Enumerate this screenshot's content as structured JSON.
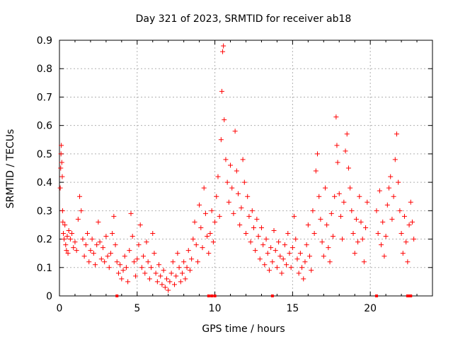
{
  "chart_data": {
    "type": "scatter",
    "title": "Day 321 of 2023, SRMTID for receiver ab18",
    "xlabel": "GPS time / hours",
    "ylabel": "SRMTID / TECUs",
    "xlim": [
      0,
      24
    ],
    "ylim": [
      0,
      0.9
    ],
    "xticks": [
      0,
      5,
      10,
      15,
      20
    ],
    "yticks": [
      0,
      0.1,
      0.2,
      0.3,
      0.4,
      0.5,
      0.6,
      0.7,
      0.8,
      0.9
    ],
    "grid": true,
    "marker": "+",
    "color": "#ff0000",
    "series": [
      {
        "name": "SRMTID",
        "points": [
          [
            0.05,
            0.38
          ],
          [
            0.08,
            0.45
          ],
          [
            0.1,
            0.5
          ],
          [
            0.12,
            0.53
          ],
          [
            0.15,
            0.47
          ],
          [
            0.18,
            0.42
          ],
          [
            0.2,
            0.3
          ],
          [
            0.22,
            0.26
          ],
          [
            0.25,
            0.22
          ],
          [
            0.3,
            0.2
          ],
          [
            0.35,
            0.25
          ],
          [
            0.4,
            0.18
          ],
          [
            0.45,
            0.16
          ],
          [
            0.5,
            0.21
          ],
          [
            0.55,
            0.15
          ],
          [
            0.6,
            0.23
          ],
          [
            0.7,
            0.2
          ],
          [
            0.8,
            0.22
          ],
          [
            0.9,
            0.17
          ],
          [
            1.0,
            0.19
          ],
          [
            1.1,
            0.16
          ],
          [
            1.2,
            0.27
          ],
          [
            1.3,
            0.35
          ],
          [
            1.4,
            0.3
          ],
          [
            1.5,
            0.2
          ],
          [
            1.6,
            0.14
          ],
          [
            1.7,
            0.18
          ],
          [
            1.8,
            0.22
          ],
          [
            1.9,
            0.12
          ],
          [
            2.0,
            0.16
          ],
          [
            2.1,
            0.2
          ],
          [
            2.2,
            0.15
          ],
          [
            2.3,
            0.11
          ],
          [
            2.4,
            0.18
          ],
          [
            2.5,
            0.26
          ],
          [
            2.6,
            0.19
          ],
          [
            2.7,
            0.13
          ],
          [
            2.8,
            0.17
          ],
          [
            2.9,
            0.12
          ],
          [
            3.0,
            0.21
          ],
          [
            3.1,
            0.14
          ],
          [
            3.2,
            0.1
          ],
          [
            3.3,
            0.15
          ],
          [
            3.4,
            0.22
          ],
          [
            3.5,
            0.28
          ],
          [
            3.6,
            0.18
          ],
          [
            3.7,
            0.12
          ],
          [
            3.8,
            0.08
          ],
          [
            3.9,
            0.11
          ],
          [
            4.0,
            0.06
          ],
          [
            4.1,
            0.09
          ],
          [
            4.2,
            0.14
          ],
          [
            4.3,
            0.1
          ],
          [
            4.4,
            0.05
          ],
          [
            4.5,
            0.16
          ],
          [
            4.6,
            0.29
          ],
          [
            4.7,
            0.21
          ],
          [
            4.8,
            0.12
          ],
          [
            4.9,
            0.07
          ],
          [
            5.0,
            0.13
          ],
          [
            5.1,
            0.18
          ],
          [
            5.2,
            0.25
          ],
          [
            5.3,
            0.1
          ],
          [
            5.4,
            0.14
          ],
          [
            5.5,
            0.08
          ],
          [
            5.6,
            0.19
          ],
          [
            5.7,
            0.12
          ],
          [
            5.8,
            0.06
          ],
          [
            5.9,
            0.1
          ],
          [
            6.0,
            0.22
          ],
          [
            6.1,
            0.15
          ],
          [
            6.2,
            0.08
          ],
          [
            6.3,
            0.05
          ],
          [
            6.4,
            0.11
          ],
          [
            6.5,
            0.07
          ],
          [
            6.6,
            0.04
          ],
          [
            6.7,
            0.09
          ],
          [
            6.8,
            0.03
          ],
          [
            6.9,
            0.06
          ],
          [
            7.0,
            0.02
          ],
          [
            7.1,
            0.05
          ],
          [
            7.2,
            0.08
          ],
          [
            7.3,
            0.12
          ],
          [
            7.4,
            0.04
          ],
          [
            7.5,
            0.07
          ],
          [
            7.6,
            0.15
          ],
          [
            7.7,
            0.1
          ],
          [
            7.8,
            0.05
          ],
          [
            7.9,
            0.08
          ],
          [
            8.0,
            0.12
          ],
          [
            8.1,
            0.06
          ],
          [
            8.2,
            0.1
          ],
          [
            8.3,
            0.16
          ],
          [
            8.4,
            0.09
          ],
          [
            8.5,
            0.13
          ],
          [
            8.6,
            0.2
          ],
          [
            8.7,
            0.26
          ],
          [
            8.8,
            0.18
          ],
          [
            8.9,
            0.12
          ],
          [
            9.0,
            0.32
          ],
          [
            9.1,
            0.24
          ],
          [
            9.2,
            0.17
          ],
          [
            9.3,
            0.38
          ],
          [
            9.4,
            0.29
          ],
          [
            9.5,
            0.21
          ],
          [
            9.6,
            0.15
          ],
          [
            9.7,
            0.22
          ],
          [
            9.8,
            0.3
          ],
          [
            9.9,
            0.19
          ],
          [
            10.0,
            0.26
          ],
          [
            10.1,
            0.35
          ],
          [
            10.2,
            0.42
          ],
          [
            10.3,
            0.28
          ],
          [
            10.4,
            0.55
          ],
          [
            10.45,
            0.72
          ],
          [
            10.5,
            0.86
          ],
          [
            10.55,
            0.88
          ],
          [
            10.6,
            0.62
          ],
          [
            10.7,
            0.48
          ],
          [
            10.8,
            0.4
          ],
          [
            10.9,
            0.33
          ],
          [
            11.0,
            0.46
          ],
          [
            11.1,
            0.38
          ],
          [
            11.2,
            0.29
          ],
          [
            11.3,
            0.58
          ],
          [
            11.4,
            0.44
          ],
          [
            11.5,
            0.36
          ],
          [
            11.6,
            0.25
          ],
          [
            11.7,
            0.31
          ],
          [
            11.8,
            0.48
          ],
          [
            11.9,
            0.4
          ],
          [
            12.0,
            0.22
          ],
          [
            12.1,
            0.35
          ],
          [
            12.2,
            0.28
          ],
          [
            12.3,
            0.19
          ],
          [
            12.4,
            0.3
          ],
          [
            12.5,
            0.24
          ],
          [
            12.6,
            0.16
          ],
          [
            12.7,
            0.27
          ],
          [
            12.8,
            0.21
          ],
          [
            12.9,
            0.13
          ],
          [
            13.0,
            0.24
          ],
          [
            13.1,
            0.18
          ],
          [
            13.2,
            0.11
          ],
          [
            13.3,
            0.2
          ],
          [
            13.4,
            0.15
          ],
          [
            13.5,
            0.09
          ],
          [
            13.6,
            0.17
          ],
          [
            13.7,
            0.12
          ],
          [
            13.8,
            0.23
          ],
          [
            13.9,
            0.16
          ],
          [
            14.0,
            0.1
          ],
          [
            14.1,
            0.19
          ],
          [
            14.2,
            0.14
          ],
          [
            14.3,
            0.08
          ],
          [
            14.4,
            0.13
          ],
          [
            14.5,
            0.18
          ],
          [
            14.6,
            0.11
          ],
          [
            14.7,
            0.22
          ],
          [
            14.8,
            0.15
          ],
          [
            14.9,
            0.1
          ],
          [
            15.0,
            0.17
          ],
          [
            15.1,
            0.28
          ],
          [
            15.2,
            0.2
          ],
          [
            15.3,
            0.13
          ],
          [
            15.4,
            0.08
          ],
          [
            15.5,
            0.15
          ],
          [
            15.6,
            0.1
          ],
          [
            15.7,
            0.06
          ],
          [
            15.8,
            0.12
          ],
          [
            15.9,
            0.18
          ],
          [
            16.0,
            0.25
          ],
          [
            16.1,
            0.14
          ],
          [
            16.2,
            0.09
          ],
          [
            16.3,
            0.3
          ],
          [
            16.4,
            0.22
          ],
          [
            16.5,
            0.44
          ],
          [
            16.6,
            0.5
          ],
          [
            16.7,
            0.35
          ],
          [
            16.8,
            0.27
          ],
          [
            16.9,
            0.19
          ],
          [
            17.0,
            0.14
          ],
          [
            17.1,
            0.38
          ],
          [
            17.2,
            0.25
          ],
          [
            17.3,
            0.17
          ],
          [
            17.4,
            0.12
          ],
          [
            17.5,
            0.29
          ],
          [
            17.6,
            0.21
          ],
          [
            17.7,
            0.35
          ],
          [
            17.8,
            0.63
          ],
          [
            17.85,
            0.53
          ],
          [
            17.9,
            0.47
          ],
          [
            18.0,
            0.36
          ],
          [
            18.1,
            0.28
          ],
          [
            18.2,
            0.2
          ],
          [
            18.3,
            0.33
          ],
          [
            18.4,
            0.51
          ],
          [
            18.5,
            0.57
          ],
          [
            18.6,
            0.45
          ],
          [
            18.7,
            0.38
          ],
          [
            18.8,
            0.3
          ],
          [
            18.9,
            0.22
          ],
          [
            19.0,
            0.15
          ],
          [
            19.1,
            0.27
          ],
          [
            19.2,
            0.19
          ],
          [
            19.3,
            0.35
          ],
          [
            19.4,
            0.26
          ],
          [
            19.5,
            0.2
          ],
          [
            19.6,
            0.12
          ],
          [
            19.7,
            0.24
          ],
          [
            19.8,
            0.33
          ],
          [
            20.4,
            0.3
          ],
          [
            20.5,
            0.22
          ],
          [
            20.6,
            0.37
          ],
          [
            20.7,
            0.18
          ],
          [
            20.8,
            0.26
          ],
          [
            20.9,
            0.14
          ],
          [
            21.0,
            0.21
          ],
          [
            21.1,
            0.32
          ],
          [
            21.2,
            0.38
          ],
          [
            21.3,
            0.42
          ],
          [
            21.4,
            0.27
          ],
          [
            21.5,
            0.35
          ],
          [
            21.6,
            0.48
          ],
          [
            21.7,
            0.57
          ],
          [
            21.8,
            0.4
          ],
          [
            21.9,
            0.3
          ],
          [
            22.0,
            0.22
          ],
          [
            22.1,
            0.15
          ],
          [
            22.2,
            0.28
          ],
          [
            22.3,
            0.19
          ],
          [
            22.4,
            0.12
          ],
          [
            22.5,
            0.25
          ],
          [
            22.6,
            0.33
          ],
          [
            22.7,
            0.26
          ],
          [
            22.8,
            0.2
          ]
        ]
      }
    ],
    "zero_points_x": [
      3.7,
      9.6,
      9.8,
      10.0,
      13.7,
      20.4,
      22.4,
      22.5,
      22.6
    ]
  }
}
